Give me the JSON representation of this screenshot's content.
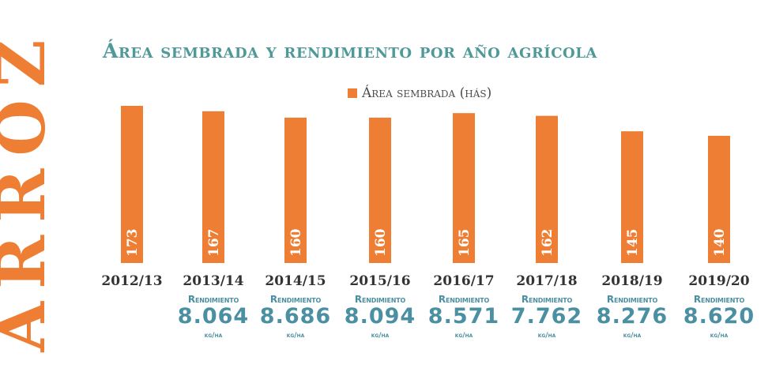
{
  "side_title": "ARROZ",
  "chart_data": {
    "type": "bar",
    "title": "Área sembrada y rendimiento por año agrícola",
    "legend": "Área sembrada (hás)",
    "categories": [
      "2012/13",
      "2013/14",
      "2014/15",
      "2015/16",
      "2016/17",
      "2017/18",
      "2018/19",
      "2019/20"
    ],
    "series": [
      {
        "name": "Área sembrada (hás)",
        "values": [
          173,
          167,
          160,
          160,
          165,
          162,
          145,
          140
        ],
        "color": "#ee7e33"
      }
    ],
    "yield_label": "Rendimiento",
    "yield_unit": "kg/ha",
    "yields": [
      null,
      "8.064",
      "8.686",
      "8.094",
      "8.571",
      "7.762",
      "8.276",
      "8.620"
    ],
    "yield_color": "#4b8fa2",
    "ylim": [
      0,
      190
    ]
  }
}
